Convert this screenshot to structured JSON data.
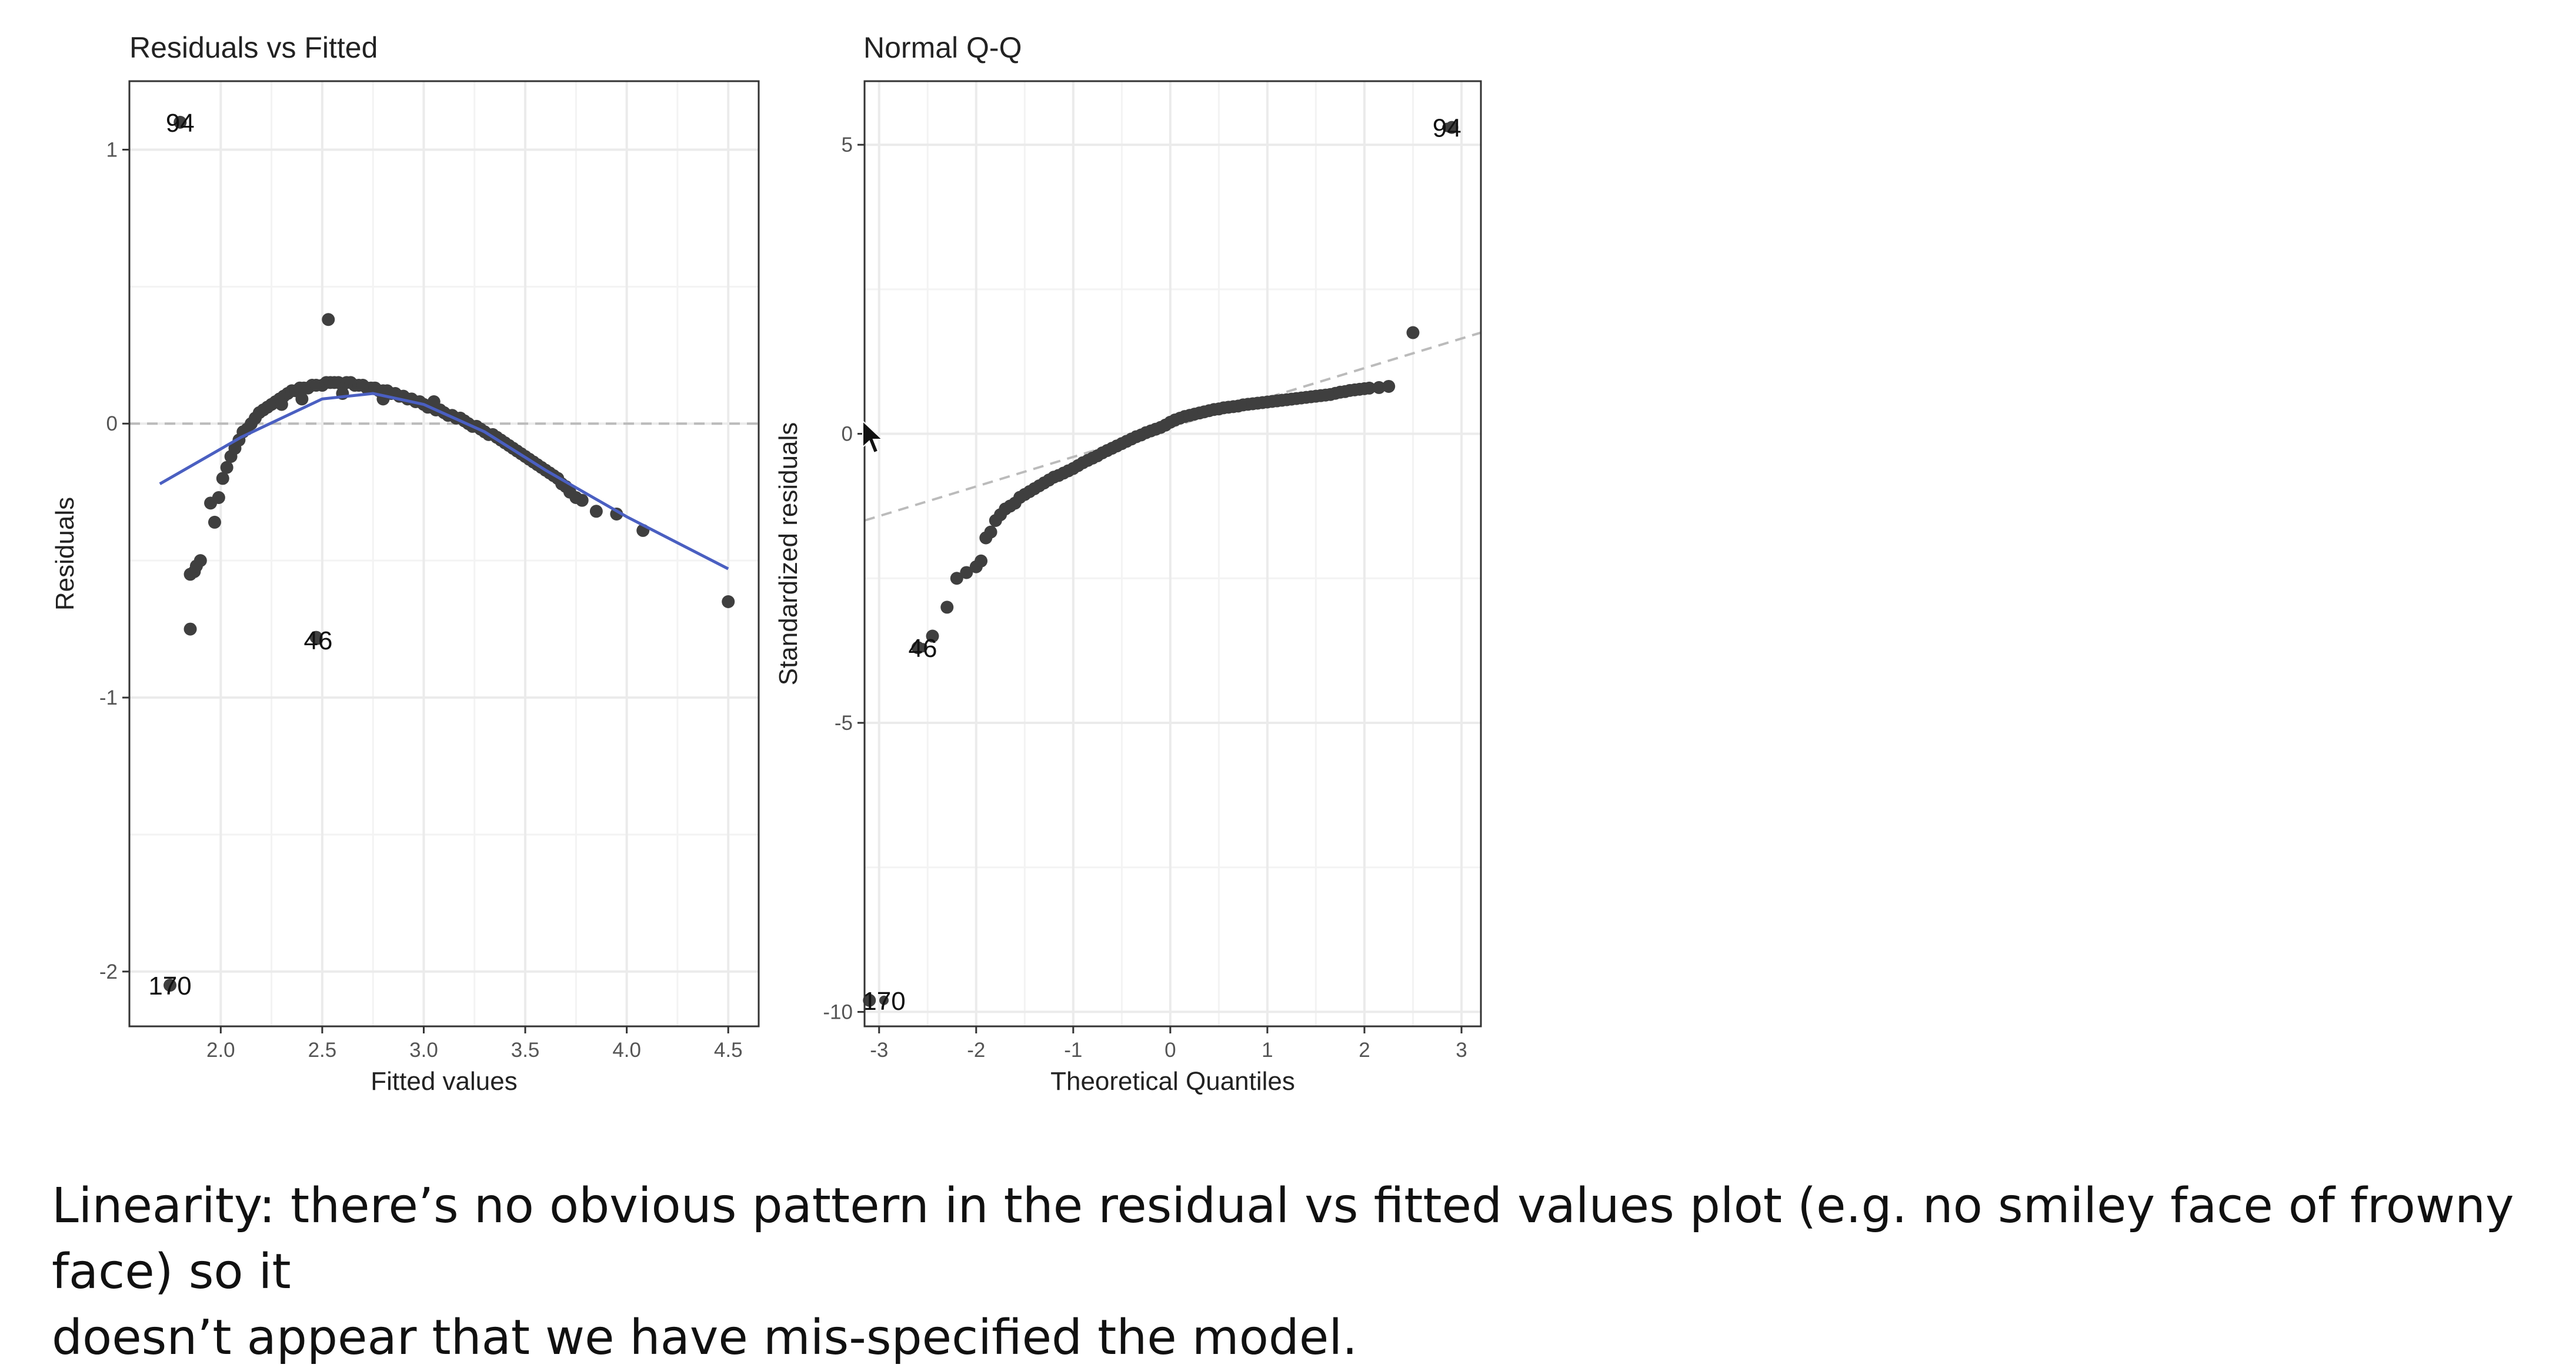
{
  "caption": {
    "line1": "Linearity: there’s no obvious pattern in the residual vs fitted values plot (e.g. no smiley face of frowny face) so it",
    "line2": "doesn’t appear that we have mis-specified the model."
  },
  "colors": {
    "point": "#3f3f3f",
    "smooth": "#4a5fc1",
    "grid": "#ebebeb",
    "refline": "#bbbbbb",
    "panel_border": "#333333"
  },
  "chart_data": [
    {
      "type": "scatter",
      "title": "Residuals vs Fitted",
      "xlabel": "Fitted values",
      "ylabel": "Residuals",
      "xlim": [
        1.55,
        4.65
      ],
      "ylim": [
        -2.2,
        1.25
      ],
      "xticks": [
        2.0,
        2.5,
        3.0,
        3.5,
        4.0,
        4.5
      ],
      "xtick_labels": [
        "2.0",
        "2.5",
        "3.0",
        "3.5",
        "4.0",
        "4.5"
      ],
      "yticks": [
        -2,
        -1,
        0,
        1
      ],
      "ytick_labels": [
        "-2",
        "-1",
        "0",
        "1"
      ],
      "reference_line": {
        "y": 0,
        "style": "dashed"
      },
      "points": [
        [
          1.85,
          -0.75
        ],
        [
          1.85,
          -0.55
        ],
        [
          1.87,
          -0.54
        ],
        [
          1.88,
          -0.52
        ],
        [
          1.9,
          -0.5
        ],
        [
          1.95,
          -0.29
        ],
        [
          1.97,
          -0.36
        ],
        [
          1.99,
          -0.27
        ],
        [
          2.01,
          -0.2
        ],
        [
          2.03,
          -0.16
        ],
        [
          2.05,
          -0.12
        ],
        [
          2.07,
          -0.09
        ],
        [
          2.09,
          -0.06
        ],
        [
          2.11,
          -0.03
        ],
        [
          2.13,
          -0.02
        ],
        [
          2.15,
          0.0
        ],
        [
          2.17,
          0.02
        ],
        [
          2.19,
          0.04
        ],
        [
          2.21,
          0.05
        ],
        [
          2.23,
          0.06
        ],
        [
          2.25,
          0.07
        ],
        [
          2.27,
          0.08
        ],
        [
          2.29,
          0.09
        ],
        [
          2.31,
          0.1
        ],
        [
          2.33,
          0.11
        ],
        [
          2.35,
          0.12
        ],
        [
          2.37,
          0.12
        ],
        [
          2.39,
          0.13
        ],
        [
          2.41,
          0.13
        ],
        [
          2.43,
          0.13
        ],
        [
          2.45,
          0.14
        ],
        [
          2.47,
          0.14
        ],
        [
          2.5,
          0.14
        ],
        [
          2.52,
          0.15
        ],
        [
          2.54,
          0.15
        ],
        [
          2.56,
          0.15
        ],
        [
          2.58,
          0.15
        ],
        [
          2.6,
          0.14
        ],
        [
          2.62,
          0.15
        ],
        [
          2.64,
          0.15
        ],
        [
          2.66,
          0.14
        ],
        [
          2.68,
          0.14
        ],
        [
          2.7,
          0.14
        ],
        [
          2.72,
          0.13
        ],
        [
          2.74,
          0.13
        ],
        [
          2.76,
          0.13
        ],
        [
          2.78,
          0.12
        ],
        [
          2.8,
          0.12
        ],
        [
          2.82,
          0.12
        ],
        [
          2.84,
          0.11
        ],
        [
          2.86,
          0.11
        ],
        [
          2.88,
          0.1
        ],
        [
          2.9,
          0.1
        ],
        [
          2.92,
          0.09
        ],
        [
          2.94,
          0.09
        ],
        [
          2.96,
          0.08
        ],
        [
          2.98,
          0.08
        ],
        [
          3.0,
          0.07
        ],
        [
          3.02,
          0.06
        ],
        [
          3.04,
          0.06
        ],
        [
          3.06,
          0.05
        ],
        [
          3.08,
          0.05
        ],
        [
          3.1,
          0.04
        ],
        [
          3.12,
          0.03
        ],
        [
          3.14,
          0.03
        ],
        [
          3.16,
          0.02
        ],
        [
          3.18,
          0.02
        ],
        [
          3.2,
          0.01
        ],
        [
          3.22,
          0.0
        ],
        [
          3.24,
          -0.01
        ],
        [
          3.26,
          -0.01
        ],
        [
          3.28,
          -0.02
        ],
        [
          3.3,
          -0.03
        ],
        [
          3.32,
          -0.04
        ],
        [
          3.34,
          -0.04
        ],
        [
          3.36,
          -0.05
        ],
        [
          3.38,
          -0.06
        ],
        [
          3.4,
          -0.07
        ],
        [
          3.42,
          -0.08
        ],
        [
          3.44,
          -0.09
        ],
        [
          3.46,
          -0.1
        ],
        [
          3.48,
          -0.11
        ],
        [
          3.5,
          -0.12
        ],
        [
          3.52,
          -0.13
        ],
        [
          3.54,
          -0.14
        ],
        [
          3.56,
          -0.15
        ],
        [
          3.58,
          -0.16
        ],
        [
          3.6,
          -0.17
        ],
        [
          3.62,
          -0.18
        ],
        [
          3.64,
          -0.19
        ],
        [
          3.66,
          -0.2
        ],
        [
          3.68,
          -0.22
        ],
        [
          3.7,
          -0.23
        ],
        [
          3.72,
          -0.25
        ],
        [
          3.75,
          -0.27
        ],
        [
          3.78,
          -0.28
        ],
        [
          3.85,
          -0.32
        ],
        [
          3.95,
          -0.33
        ],
        [
          4.08,
          -0.39
        ],
        [
          2.53,
          0.38
        ],
        [
          2.3,
          0.07
        ],
        [
          2.4,
          0.09
        ],
        [
          2.6,
          0.11
        ],
        [
          2.8,
          0.09
        ],
        [
          3.05,
          0.08
        ],
        [
          4.5,
          -0.65
        ],
        [
          1.75,
          -2.05
        ],
        [
          1.8,
          1.1
        ],
        [
          2.47,
          -0.78
        ]
      ],
      "smooth_line": [
        [
          1.7,
          -0.22
        ],
        [
          2.1,
          -0.05
        ],
        [
          2.5,
          0.09
        ],
        [
          2.75,
          0.11
        ],
        [
          3.0,
          0.07
        ],
        [
          3.3,
          -0.03
        ],
        [
          3.6,
          -0.17
        ],
        [
          4.0,
          -0.34
        ],
        [
          4.5,
          -0.53
        ]
      ],
      "annotations": [
        {
          "label": "94",
          "x": 1.8,
          "y": 1.1
        },
        {
          "label": "46",
          "x": 2.48,
          "y": -0.79
        },
        {
          "label": "170",
          "x": 1.75,
          "y": -2.05
        }
      ]
    },
    {
      "type": "scatter",
      "title": "Normal Q-Q",
      "xlabel": "Theoretical Quantiles",
      "ylabel": "Standardized residuals",
      "xlim": [
        -3.15,
        3.2
      ],
      "ylim": [
        -10.25,
        6.1
      ],
      "xticks": [
        -3,
        -2,
        -1,
        0,
        1,
        2,
        3
      ],
      "xtick_labels": [
        "-3",
        "-2",
        "-1",
        "0",
        "1",
        "2",
        "3"
      ],
      "yticks": [
        -10,
        -5,
        0,
        5
      ],
      "ytick_labels": [
        "-10",
        "-5",
        "0",
        "5"
      ],
      "reference_line": {
        "x1": -3.15,
        "y1": -1.5,
        "x2": 3.2,
        "y2": 1.75,
        "style": "dashed"
      },
      "points": [
        [
          -2.45,
          -3.5
        ],
        [
          -2.3,
          -3.0
        ],
        [
          -2.2,
          -2.5
        ],
        [
          -2.1,
          -2.4
        ],
        [
          -2.0,
          -2.3
        ],
        [
          -1.95,
          -2.2
        ],
        [
          -1.9,
          -1.8
        ],
        [
          -1.85,
          -1.7
        ],
        [
          -1.8,
          -1.5
        ],
        [
          -1.75,
          -1.4
        ],
        [
          -1.7,
          -1.3
        ],
        [
          -1.65,
          -1.25
        ],
        [
          -1.6,
          -1.2
        ],
        [
          -1.55,
          -1.1
        ],
        [
          -1.5,
          -1.05
        ],
        [
          -1.45,
          -1.0
        ],
        [
          -1.4,
          -0.95
        ],
        [
          -1.35,
          -0.9
        ],
        [
          -1.3,
          -0.85
        ],
        [
          -1.25,
          -0.8
        ],
        [
          -1.2,
          -0.75
        ],
        [
          -1.15,
          -0.72
        ],
        [
          -1.1,
          -0.68
        ],
        [
          -1.05,
          -0.64
        ],
        [
          -1.0,
          -0.6
        ],
        [
          -0.95,
          -0.55
        ],
        [
          -0.9,
          -0.5
        ],
        [
          -0.85,
          -0.46
        ],
        [
          -0.8,
          -0.42
        ],
        [
          -0.75,
          -0.38
        ],
        [
          -0.7,
          -0.33
        ],
        [
          -0.65,
          -0.29
        ],
        [
          -0.6,
          -0.25
        ],
        [
          -0.55,
          -0.21
        ],
        [
          -0.5,
          -0.17
        ],
        [
          -0.45,
          -0.13
        ],
        [
          -0.4,
          -0.09
        ],
        [
          -0.35,
          -0.05
        ],
        [
          -0.3,
          -0.02
        ],
        [
          -0.25,
          0.02
        ],
        [
          -0.2,
          0.05
        ],
        [
          -0.15,
          0.08
        ],
        [
          -0.1,
          0.11
        ],
        [
          -0.05,
          0.15
        ],
        [
          0.0,
          0.2
        ],
        [
          0.05,
          0.24
        ],
        [
          0.1,
          0.27
        ],
        [
          0.15,
          0.3
        ],
        [
          0.2,
          0.32
        ],
        [
          0.25,
          0.34
        ],
        [
          0.3,
          0.36
        ],
        [
          0.35,
          0.38
        ],
        [
          0.4,
          0.4
        ],
        [
          0.45,
          0.42
        ],
        [
          0.5,
          0.43
        ],
        [
          0.55,
          0.45
        ],
        [
          0.6,
          0.46
        ],
        [
          0.65,
          0.47
        ],
        [
          0.7,
          0.48
        ],
        [
          0.75,
          0.5
        ],
        [
          0.8,
          0.51
        ],
        [
          0.85,
          0.52
        ],
        [
          0.9,
          0.53
        ],
        [
          0.95,
          0.54
        ],
        [
          1.0,
          0.55
        ],
        [
          1.05,
          0.56
        ],
        [
          1.1,
          0.57
        ],
        [
          1.15,
          0.58
        ],
        [
          1.2,
          0.59
        ],
        [
          1.25,
          0.6
        ],
        [
          1.3,
          0.61
        ],
        [
          1.35,
          0.62
        ],
        [
          1.4,
          0.63
        ],
        [
          1.45,
          0.64
        ],
        [
          1.5,
          0.65
        ],
        [
          1.55,
          0.66
        ],
        [
          1.6,
          0.67
        ],
        [
          1.65,
          0.68
        ],
        [
          1.7,
          0.7
        ],
        [
          1.75,
          0.72
        ],
        [
          1.8,
          0.73
        ],
        [
          1.85,
          0.75
        ],
        [
          1.9,
          0.76
        ],
        [
          1.95,
          0.77
        ],
        [
          2.0,
          0.78
        ],
        [
          2.05,
          0.79
        ],
        [
          2.15,
          0.8
        ],
        [
          2.25,
          0.82
        ],
        [
          2.5,
          1.75
        ],
        [
          -2.6,
          -3.7
        ],
        [
          -3.1,
          -9.8
        ],
        [
          2.9,
          5.3
        ]
      ],
      "annotations": [
        {
          "label": "94",
          "x": 2.85,
          "y": 5.3
        },
        {
          "label": "46",
          "x": -2.55,
          "y": -3.7
        },
        {
          "label": "170",
          "x": -2.95,
          "y": -9.8
        }
      ]
    }
  ]
}
